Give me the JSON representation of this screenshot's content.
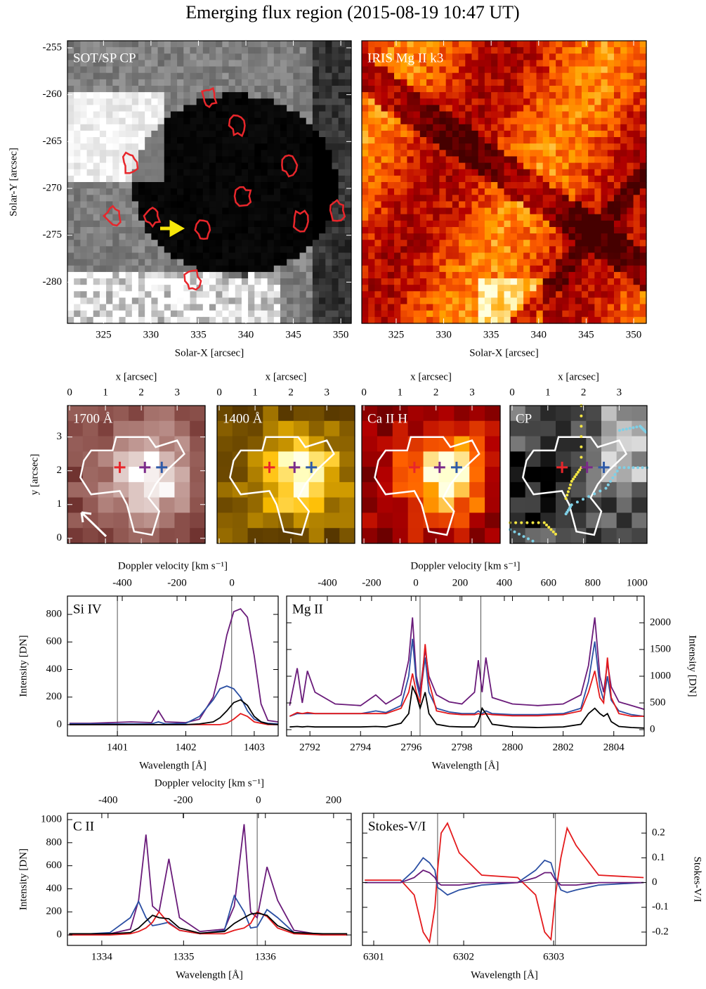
{
  "title": "Emerging flux region (2015-08-19 10:47 UT)",
  "chart_data": [
    {
      "type": "image",
      "label": "SOT/SP CP",
      "colormap": "gray",
      "xlabel": "Solar-X [arcsec]",
      "ylabel": "Solar-Y [arcsec]",
      "xlim": [
        321.2,
        351.1
      ],
      "ylim": [
        -284.4,
        -254.25
      ],
      "xticks": [
        325,
        330,
        335,
        340,
        345,
        350
      ],
      "yticks": [
        -255,
        -260,
        -265,
        -270,
        -275,
        -280
      ]
    },
    {
      "type": "image",
      "label": "IRIS Mg II k3",
      "colormap": "heat",
      "xlabel": "Solar-X [arcsec]",
      "xlim": [
        321.38,
        351.33
      ],
      "ylim": [
        -284.4,
        -254.25
      ],
      "xticks": [
        325,
        330,
        335,
        340,
        345,
        350
      ]
    },
    {
      "type": "map",
      "label": "1700 Å",
      "colormap": "pink",
      "xlabel": "x [arcsec]",
      "ylabel": "y [arcsec]",
      "xlim": [
        -0.06,
        3.78
      ],
      "ylim": [
        -0.15,
        3.93
      ],
      "xticks": [
        0,
        1,
        2,
        3
      ],
      "yticks": [
        0,
        1,
        2,
        3
      ],
      "points": {
        "x": [
          1.4,
          2.1,
          2.57
        ],
        "y": [
          2.1,
          2.1,
          2.1
        ],
        "colors": [
          "#e8262b",
          "#7b2a8a",
          "#2e5aa8"
        ]
      }
    },
    {
      "type": "map",
      "label": "1400 Å",
      "colormap": "gold",
      "xlabel": "x [arcsec]",
      "xlim": [
        -0.06,
        3.78
      ],
      "ylim": [
        -0.15,
        3.93
      ],
      "xticks": [
        0,
        1,
        2,
        3
      ],
      "points": {
        "x": [
          1.4,
          2.1,
          2.57
        ],
        "y": [
          2.1,
          2.1,
          2.1
        ],
        "colors": [
          "#e8262b",
          "#7b2a8a",
          "#2e5aa8"
        ]
      }
    },
    {
      "type": "map",
      "label": "Ca II H",
      "colormap": "heat",
      "xlabel": "x [arcsec]",
      "xlim": [
        -0.06,
        3.78
      ],
      "ylim": [
        -0.15,
        3.93
      ],
      "xticks": [
        0,
        1,
        2,
        3
      ],
      "points": {
        "x": [
          1.4,
          2.1,
          2.57
        ],
        "y": [
          2.1,
          2.1,
          2.1
        ],
        "colors": [
          "#e8262b",
          "#7b2a8a",
          "#2e5aa8"
        ]
      }
    },
    {
      "type": "map",
      "label": "CP",
      "colormap": "gray",
      "xlabel": "x [arcsec]",
      "xlim": [
        -0.06,
        3.78
      ],
      "ylim": [
        -0.15,
        3.93
      ],
      "xticks": [
        0,
        1,
        2,
        3
      ],
      "points": {
        "x": [
          1.4,
          2.1,
          2.57
        ],
        "y": [
          2.1,
          2.1,
          2.1
        ],
        "colors": [
          "#e8262b",
          "#7b2a8a",
          "#2e5aa8"
        ]
      }
    },
    {
      "type": "line",
      "label": "Si IV",
      "xlabel": "Wavelength [Å]",
      "ylabel": "Intensity [DN]",
      "yaxis": "left",
      "x2label": "Doppler velocity [km s⁻¹]",
      "xlim": [
        1400.27,
        1403.35
      ],
      "xticks": [
        1401,
        1402,
        1403
      ],
      "ylim": [
        -82,
        933
      ],
      "yticks": [
        0,
        200,
        400,
        600,
        800
      ],
      "x2lim": [
        -600,
        169
      ],
      "x2ticks": [
        -400,
        -200,
        0
      ],
      "vlines": [
        1401.0,
        1402.67
      ],
      "x": [
        1400.3,
        1400.6,
        1400.9,
        1401.2,
        1401.5,
        1401.6,
        1401.7,
        1402.0,
        1402.2,
        1402.4,
        1402.5,
        1402.6,
        1402.7,
        1402.8,
        1402.9,
        1403.0,
        1403.1,
        1403.2,
        1403.35
      ],
      "series": [
        {
          "color": "#6a1b7a",
          "values": [
            10,
            10,
            15,
            20,
            15,
            100,
            20,
            15,
            40,
            200,
            400,
            650,
            820,
            840,
            780,
            500,
            150,
            30,
            20
          ]
        },
        {
          "color": "#2b4fa3",
          "values": [
            5,
            5,
            5,
            5,
            5,
            20,
            5,
            10,
            60,
            180,
            260,
            280,
            260,
            200,
            100,
            40,
            20,
            10,
            5
          ]
        },
        {
          "color": "#e41a1c",
          "values": [
            0,
            0,
            0,
            0,
            0,
            0,
            0,
            0,
            0,
            0,
            0,
            10,
            40,
            80,
            60,
            20,
            10,
            0,
            0
          ]
        },
        {
          "color": "#000000",
          "values": [
            0,
            0,
            0,
            0,
            0,
            0,
            0,
            0,
            5,
            20,
            50,
            100,
            160,
            180,
            140,
            60,
            20,
            5,
            0
          ]
        }
      ]
    },
    {
      "type": "line",
      "label": "Mg II",
      "xlabel": "Wavelength [Å]",
      "ylabel": "Intensity [DN]",
      "yaxis": "right",
      "x2label": "Doppler velocity [km s⁻¹]",
      "xlim": [
        2791.08,
        2805.2
      ],
      "xticks": [
        2792,
        2794,
        2796,
        2798,
        2800,
        2802,
        2804
      ],
      "ylim": [
        -118,
        2500
      ],
      "yticks": [
        0,
        500,
        1000,
        1500,
        2000
      ],
      "x2lim": [
        -584,
        1032
      ],
      "x2ticks": [
        -400,
        -200,
        0,
        200,
        400,
        600,
        800,
        1000
      ],
      "vlines": [
        2796.35,
        2798.75
      ],
      "x": [
        2791.2,
        2791.5,
        2791.7,
        2791.9,
        2792.2,
        2793,
        2794,
        2794.6,
        2795,
        2795.6,
        2795.9,
        2796.05,
        2796.2,
        2796.35,
        2796.55,
        2796.7,
        2797,
        2797.5,
        2798,
        2798.5,
        2798.65,
        2798.8,
        2798.95,
        2799.2,
        2800,
        2801,
        2802,
        2802.7,
        2803.0,
        2803.25,
        2803.45,
        2803.6,
        2803.75,
        2803.9,
        2804.2,
        2804.7,
        2805.2
      ],
      "series": [
        {
          "color": "#6a1b7a",
          "values": [
            450,
            1150,
            500,
            1100,
            700,
            480,
            450,
            650,
            480,
            650,
            1300,
            2100,
            1000,
            700,
            1500,
            1000,
            650,
            520,
            480,
            700,
            1300,
            700,
            1350,
            600,
            480,
            450,
            480,
            650,
            1200,
            2100,
            1000,
            700,
            1250,
            800,
            520,
            450,
            380
          ]
        },
        {
          "color": "#2b4fa3",
          "values": [
            250,
            300,
            300,
            300,
            300,
            300,
            300,
            350,
            320,
            450,
            1000,
            1700,
            900,
            600,
            1350,
            700,
            400,
            330,
            300,
            300,
            350,
            300,
            350,
            300,
            280,
            280,
            300,
            400,
            900,
            1650,
            800,
            550,
            1000,
            550,
            350,
            280,
            250
          ]
        },
        {
          "color": "#e41a1c",
          "values": [
            250,
            320,
            300,
            320,
            300,
            300,
            300,
            300,
            300,
            400,
            700,
            1050,
            700,
            500,
            1600,
            900,
            350,
            300,
            280,
            280,
            300,
            280,
            300,
            280,
            260,
            260,
            280,
            350,
            700,
            1100,
            600,
            500,
            1350,
            600,
            300,
            250,
            250
          ]
        },
        {
          "color": "#000000",
          "values": [
            50,
            60,
            50,
            60,
            50,
            50,
            50,
            60,
            50,
            120,
            300,
            800,
            650,
            400,
            700,
            300,
            100,
            60,
            50,
            50,
            150,
            400,
            300,
            100,
            50,
            40,
            50,
            100,
            300,
            400,
            300,
            250,
            300,
            150,
            60,
            40,
            30
          ]
        }
      ]
    },
    {
      "type": "line",
      "label": "C II",
      "xlabel": "Wavelength [Å]",
      "ylabel": "Intensity [DN]",
      "yaxis": "left",
      "x2label": "Doppler velocity [km s⁻¹]",
      "xlim": [
        1333.58,
        1337.05
      ],
      "xticks": [
        1334,
        1335,
        1336
      ],
      "ylim": [
        -91,
        1055
      ],
      "yticks": [
        0,
        200,
        400,
        600,
        800,
        1000
      ],
      "x2lim": [
        -508,
        247
      ],
      "x2ticks": [
        -400,
        -200,
        0,
        200
      ],
      "vlines": [
        1335.9
      ],
      "x": [
        1333.6,
        1334.1,
        1334.35,
        1334.45,
        1334.54,
        1334.62,
        1334.7,
        1334.82,
        1334.95,
        1335.2,
        1335.5,
        1335.62,
        1335.74,
        1335.82,
        1335.9,
        1336.02,
        1336.15,
        1336.35,
        1336.7,
        1337.0
      ],
      "series": [
        {
          "color": "#6a1b7a",
          "values": [
            0,
            10,
            50,
            300,
            870,
            250,
            200,
            660,
            150,
            30,
            50,
            250,
            960,
            200,
            150,
            590,
            300,
            40,
            0,
            0
          ]
        },
        {
          "color": "#2b4fa3",
          "values": [
            0,
            20,
            150,
            290,
            150,
            80,
            90,
            110,
            40,
            10,
            40,
            340,
            200,
            60,
            70,
            220,
            150,
            20,
            0,
            0
          ]
        },
        {
          "color": "#e41a1c",
          "values": [
            0,
            0,
            10,
            30,
            60,
            110,
            200,
            100,
            40,
            10,
            10,
            40,
            60,
            100,
            200,
            160,
            60,
            10,
            0,
            0
          ]
        },
        {
          "color": "#000000",
          "values": [
            10,
            10,
            20,
            60,
            120,
            170,
            150,
            140,
            60,
            15,
            30,
            100,
            150,
            180,
            190,
            170,
            80,
            20,
            10,
            10
          ]
        }
      ]
    },
    {
      "type": "line",
      "label": "Stokes-V/I",
      "xlabel": "Wavelength [Å]",
      "ylabel": "Stokes-V/I",
      "yaxis": "right",
      "xlim": [
        6300.875,
        6304.03
      ],
      "xticks": [
        6301,
        6302,
        6303
      ],
      "ylim": [
        -0.254,
        0.28
      ],
      "yticks": [
        -0.2,
        -0.1,
        0,
        0.1,
        0.2
      ],
      "vlines": [
        6301.71,
        6303.02
      ],
      "x": [
        6300.9,
        6301.3,
        6301.45,
        6301.55,
        6301.62,
        6301.68,
        6301.71,
        6301.75,
        6301.82,
        6301.95,
        6302.2,
        6302.6,
        6302.8,
        6302.9,
        6302.97,
        6303.02,
        6303.08,
        6303.15,
        6303.25,
        6303.5,
        6304.0
      ],
      "series": [
        {
          "color": "#e41a1c",
          "values": [
            0.01,
            0.01,
            -0.05,
            -0.2,
            -0.24,
            -0.1,
            0.05,
            0.2,
            0.24,
            0.12,
            0.03,
            0.02,
            -0.05,
            -0.2,
            -0.23,
            -0.05,
            0.1,
            0.22,
            0.15,
            0.03,
            0.02
          ]
        },
        {
          "color": "#2b4fa3",
          "values": [
            0,
            0,
            0.05,
            0.1,
            0.08,
            0.05,
            -0.02,
            -0.03,
            -0.05,
            -0.03,
            -0.01,
            0,
            0.05,
            0.09,
            0.08,
            0.02,
            -0.03,
            -0.04,
            -0.03,
            -0.01,
            0
          ]
        },
        {
          "color": "#6a1b7a",
          "values": [
            0,
            0,
            0.02,
            0.05,
            0.04,
            0.02,
            0,
            -0.01,
            -0.01,
            -0.01,
            0,
            0,
            0.02,
            0.04,
            0.04,
            0.01,
            -0.01,
            -0.01,
            -0.01,
            0,
            0
          ]
        }
      ]
    }
  ]
}
